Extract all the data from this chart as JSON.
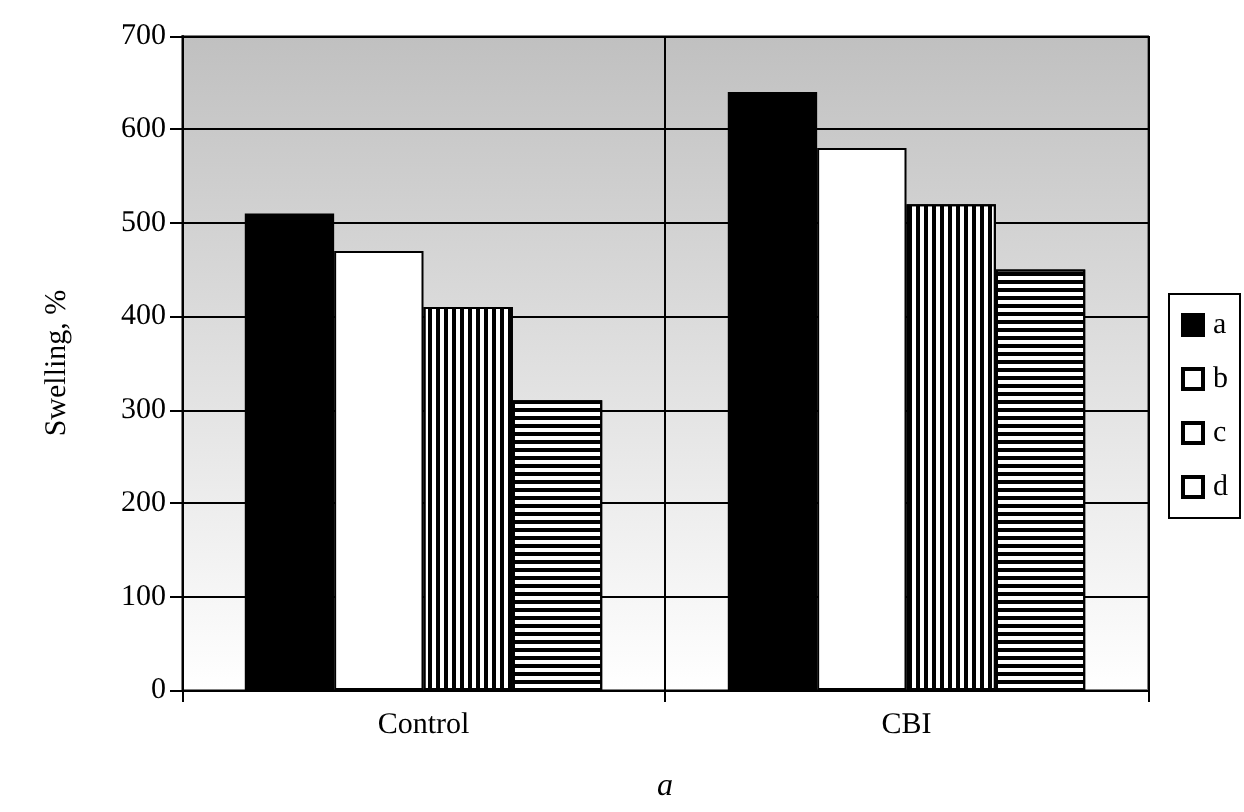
{
  "chart_data": {
    "type": "bar",
    "ylabel": "Swelling, %",
    "xlabel": "a",
    "categories": [
      "Control",
      "CBI"
    ],
    "series": [
      {
        "name": "a",
        "color": "#000000",
        "values": [
          510,
          640
        ]
      },
      {
        "name": "b",
        "color": "#ffffff",
        "values": [
          470,
          580
        ]
      },
      {
        "name": "c",
        "color": "#ffffff",
        "values": [
          410,
          520
        ]
      },
      {
        "name": "d",
        "color": "#ffffff",
        "values": [
          310,
          450
        ]
      }
    ],
    "ylim": [
      0,
      700
    ],
    "yticks": [
      0,
      100,
      200,
      300,
      400,
      500,
      600,
      700
    ],
    "grid": true,
    "legend": "right"
  }
}
